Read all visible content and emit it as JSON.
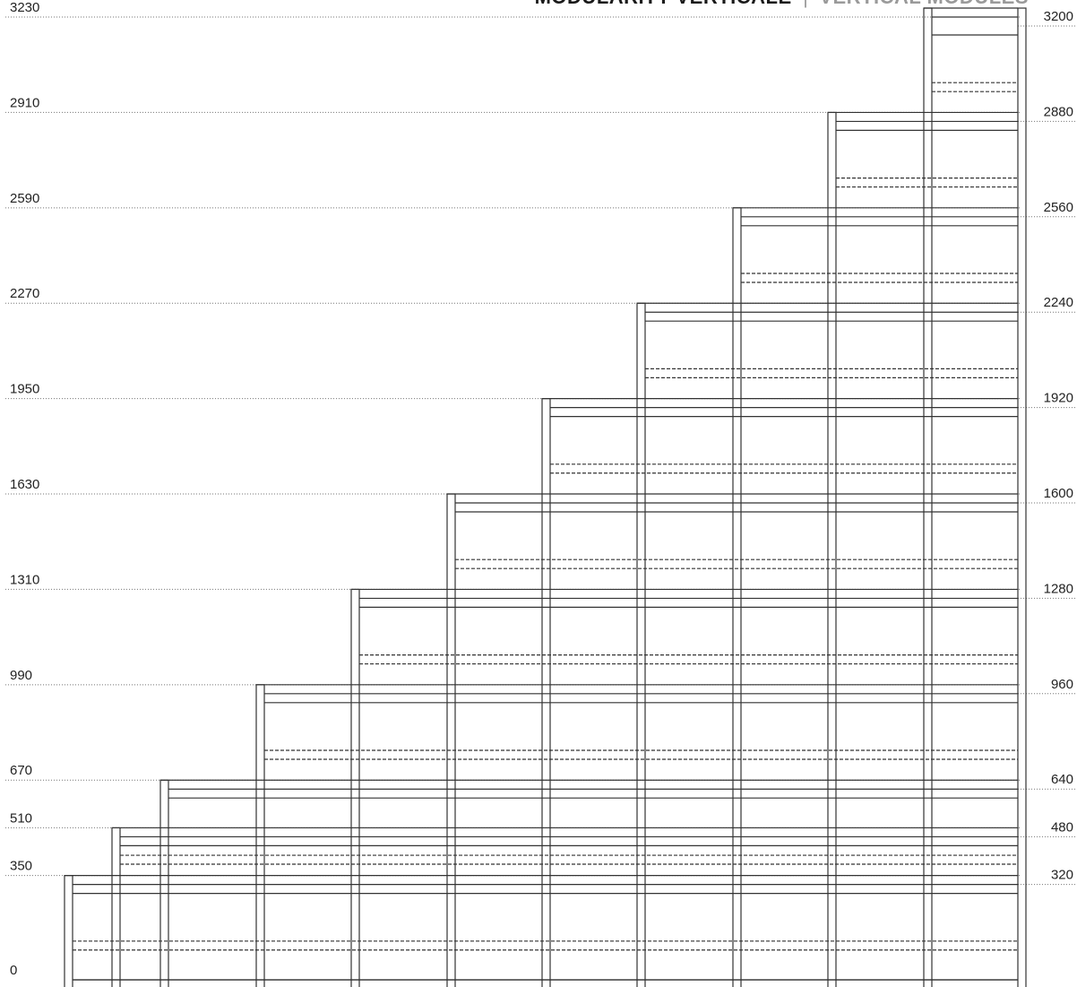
{
  "header": {
    "title_primary": "MODULARITY VERTICALE",
    "separator": "|",
    "title_secondary": "VERTICAL MODULES"
  },
  "scale_left": {
    "labels": [
      "3230",
      "2910",
      "2590",
      "2270",
      "1950",
      "1630",
      "1310",
      "990",
      "670",
      "510",
      "350",
      "0"
    ],
    "values": [
      3230,
      2910,
      2590,
      2270,
      1950,
      1630,
      1310,
      990,
      670,
      510,
      350,
      0
    ]
  },
  "scale_right": {
    "labels": [
      "3200",
      "2880",
      "2560",
      "2240",
      "1920",
      "1600",
      "1280",
      "960",
      "640",
      "480",
      "320"
    ],
    "values": [
      3200,
      2880,
      2560,
      2240,
      1920,
      1600,
      1280,
      960,
      640,
      480,
      320
    ]
  },
  "columns": {
    "count": 11,
    "heights": [
      350,
      510,
      670,
      990,
      1310,
      1630,
      1950,
      2270,
      2590,
      2910,
      3230
    ]
  },
  "colors": {
    "line": "#333333",
    "guide": "#777777",
    "text": "#222222",
    "title_dark": "#1a1a1a",
    "title_light": "#9a9a9a"
  }
}
